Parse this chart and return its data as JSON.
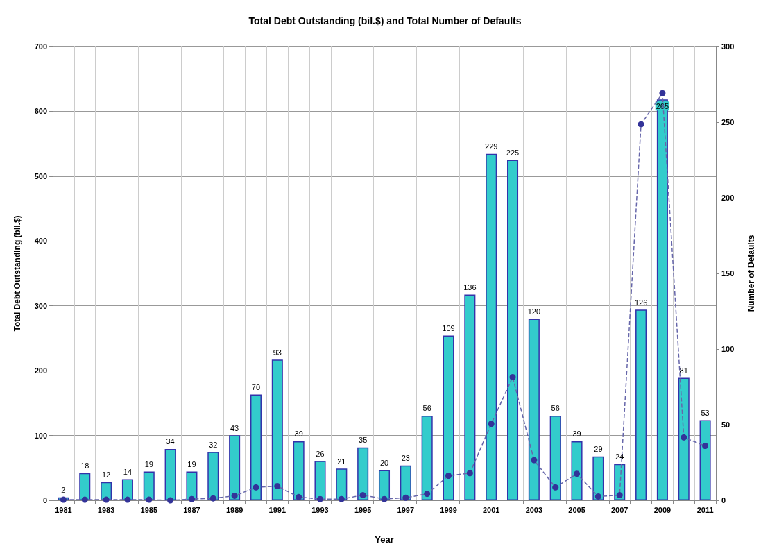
{
  "chart_data": {
    "type": "bar",
    "title": "Total Debt Outstanding (bil.$) and Total Number of Defaults",
    "xlabel": "Year",
    "ylabel": "Total Debt Outstanding (bil.$)",
    "y2label": "Number of Defaults",
    "categories": [
      "1981",
      null,
      "1983",
      null,
      "1985",
      null,
      "1987",
      null,
      "1989",
      null,
      "1991",
      null,
      "1993",
      null,
      "1995",
      null,
      "1997",
      null,
      "1999",
      null,
      "2001",
      null,
      "2003",
      null,
      "2005",
      null,
      "2007",
      null,
      "2009",
      null,
      "2011"
    ],
    "series": [
      {
        "axis": "y2",
        "color": "#33cccc",
        "values": [
          2,
          18,
          12,
          14,
          19,
          34,
          19,
          32,
          43,
          70,
          93,
          39,
          26,
          21,
          35,
          20,
          23,
          56,
          109,
          136,
          229,
          225,
          120,
          56,
          39,
          29,
          24,
          126,
          265,
          81,
          53
        ],
        "value_labels": [
          "2",
          "18",
          "12",
          "14",
          "19",
          "34",
          "19",
          "32",
          "43",
          "70",
          "93",
          "39",
          "26",
          "21",
          "35",
          "20",
          "23",
          "56",
          "109",
          "136",
          "229",
          "225",
          "120",
          "56",
          "39",
          "29",
          "24",
          "126",
          "265",
          "81",
          "53"
        ]
      },
      {
        "type": "line",
        "axis": "y",
        "color": "#333399",
        "marker": "circle",
        "line_style": "dashed",
        "values": [
          1,
          1,
          1,
          1,
          1,
          0,
          2,
          3,
          7,
          20,
          22,
          5,
          2,
          2,
          8,
          2,
          4,
          10,
          38,
          42,
          118,
          190,
          62,
          20,
          41,
          6,
          8,
          580,
          628,
          97,
          84
        ]
      }
    ],
    "ylim": [
      0,
      700
    ],
    "yticks": [
      0,
      100,
      200,
      300,
      400,
      500,
      600,
      700
    ],
    "y2lim": [
      0,
      300
    ],
    "y2ticks": [
      0,
      50,
      100,
      150,
      200,
      250,
      300
    ],
    "grid": true
  }
}
